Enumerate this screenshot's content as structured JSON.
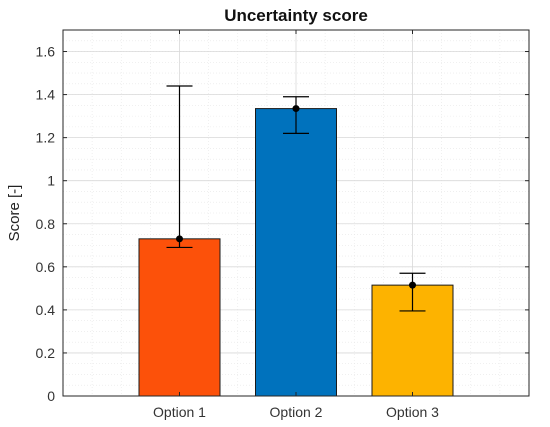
{
  "chart_data": {
    "type": "bar",
    "title": "Uncertainty score",
    "xlabel": "",
    "ylabel": "Score [-]",
    "categories": [
      "Option 1",
      "Option 2",
      "Option 3"
    ],
    "values": [
      0.73,
      1.335,
      0.515
    ],
    "error_bars": [
      {
        "lower": 0.69,
        "upper": 1.44
      },
      {
        "lower": 1.22,
        "upper": 1.39
      },
      {
        "lower": 0.395,
        "upper": 0.57
      }
    ],
    "colors": [
      "#FC510A",
      "#0072BD",
      "#FDB300"
    ],
    "ylim": [
      0,
      1.7
    ],
    "yticks": [
      0,
      0.2,
      0.4,
      0.6,
      0.8,
      1,
      1.2,
      1.4,
      1.6
    ],
    "ytick_labels": [
      "0",
      "0.2",
      "0.4",
      "0.6",
      "0.8",
      "1",
      "1.2",
      "1.4",
      "1.6"
    ],
    "grid": true,
    "minor_grid": true
  }
}
